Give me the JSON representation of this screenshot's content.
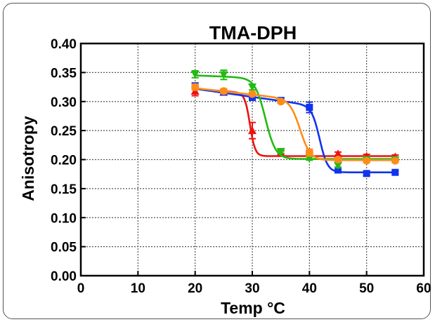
{
  "chart_data": {
    "type": "line",
    "title": "TMA-DPH",
    "xlabel": "Temp °C",
    "ylabel": "Anisotropy",
    "xlim": [
      0,
      60
    ],
    "ylim": [
      0,
      0.4
    ],
    "xticks": [
      0,
      10,
      20,
      30,
      40,
      50,
      60
    ],
    "xtick_labels": [
      "0",
      "10",
      "20",
      "30",
      "40",
      "50",
      "60"
    ],
    "yticks": [
      0,
      0.05,
      0.1,
      0.15,
      0.2,
      0.25,
      0.3,
      0.35,
      0.4
    ],
    "ytick_labels": [
      "0.00",
      "0.05",
      "0.10",
      "0.15",
      "0.20",
      "0.25",
      "0.30",
      "0.35",
      "0.40"
    ],
    "grid": true,
    "legend": "none",
    "series": [
      {
        "color": "#ee1111",
        "marker": "triangle",
        "x": [
          20,
          25,
          30,
          35,
          40,
          45,
          50,
          55
        ],
        "y": [
          0.318,
          0.316,
          0.25,
          0.212,
          0.212,
          0.21,
          0.206,
          0.205
        ],
        "error": [
          0.008,
          0.004,
          0.014,
          0.003,
          0.003,
          0.003,
          0.003,
          0.003
        ],
        "fit": {
          "top": 0.322,
          "bottom": 0.206,
          "mid": 29.6,
          "width": 0.45,
          "slope_top": -0.0008,
          "slope_bottom": 0.0
        }
      },
      {
        "color": "#1133ee",
        "marker": "square",
        "x": [
          20,
          25,
          30,
          35,
          40,
          45,
          50,
          55
        ],
        "y": [
          0.327,
          0.316,
          0.307,
          0.302,
          0.29,
          0.182,
          0.176,
          0.178
        ],
        "error": [
          0.005,
          0.004,
          0.003,
          0.003,
          0.009,
          0.003,
          0.003,
          0.003
        ],
        "fit": {
          "top": 0.322,
          "bottom": 0.178,
          "mid": 41.8,
          "width": 0.7,
          "slope_top": -0.0014,
          "slope_bottom": 0.0
        }
      },
      {
        "color": "#22bb11",
        "marker": "inverted-triangle",
        "x": [
          20,
          25,
          30,
          35,
          40,
          45,
          50,
          55
        ],
        "y": [
          0.347,
          0.346,
          0.325,
          0.214,
          0.202,
          0.19,
          0.2,
          0.2
        ],
        "error": [
          0.006,
          0.008,
          0.005,
          0.003,
          0.003,
          0.004,
          0.003,
          0.003
        ],
        "fit": {
          "top": 0.345,
          "bottom": 0.201,
          "mid": 32.3,
          "width": 0.9,
          "slope_top": -0.0004,
          "slope_bottom": 0.0
        }
      },
      {
        "color": "#ff8c1a",
        "marker": "circle",
        "x": [
          20,
          25,
          30,
          35,
          40,
          45,
          50,
          55
        ],
        "y": [
          0.325,
          0.318,
          0.313,
          0.3,
          0.212,
          0.2,
          0.198,
          0.198
        ],
        "error": [
          0.005,
          0.004,
          0.003,
          0.003,
          0.006,
          0.003,
          0.003,
          0.003
        ],
        "fit": {
          "top": 0.323,
          "bottom": 0.199,
          "mid": 38.4,
          "width": 0.9,
          "slope_top": -0.0011,
          "slope_bottom": 0.0
        }
      }
    ]
  }
}
